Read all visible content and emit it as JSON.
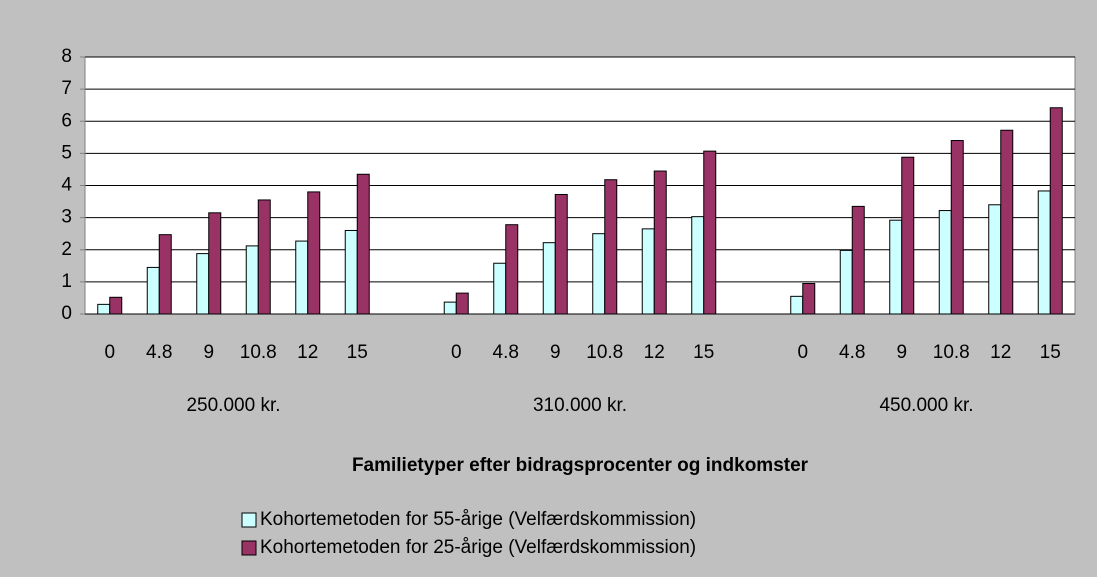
{
  "chart_data": {
    "type": "bar",
    "x_axis_title": "Familietyper efter bidragsprocenter og indkomster",
    "categories": [
      "0",
      "4.8",
      "9",
      "10.8",
      "12",
      "15",
      null,
      "0",
      "4.8",
      "9",
      "10.8",
      "12",
      "15",
      null,
      "0",
      "4.8",
      "9",
      "10.8",
      "12",
      "15"
    ],
    "groups": [
      "250.000 kr.",
      "310.000 kr.",
      "450.000 kr."
    ],
    "series": [
      {
        "name": "Kohortemetoden for 55-årige (Velfærdskommission)",
        "color": "#ccffff",
        "values": [
          0.3,
          1.45,
          1.88,
          2.12,
          2.27,
          2.6,
          null,
          0.37,
          1.58,
          2.22,
          2.5,
          2.65,
          3.03,
          null,
          0.55,
          1.98,
          2.92,
          3.22,
          3.4,
          3.83
        ]
      },
      {
        "name": "Kohortemetoden for 25-årige (Velfærdskommission)",
        "color": "#993366",
        "values": [
          0.52,
          2.47,
          3.15,
          3.55,
          3.8,
          4.35,
          null,
          0.65,
          2.78,
          3.72,
          4.18,
          4.45,
          5.07,
          null,
          0.95,
          3.35,
          4.88,
          5.4,
          5.72,
          6.42
        ]
      }
    ],
    "ylim": [
      0,
      8
    ],
    "yticks": [
      0,
      1,
      2,
      3,
      4,
      5,
      6,
      7,
      8
    ],
    "grid": true
  }
}
